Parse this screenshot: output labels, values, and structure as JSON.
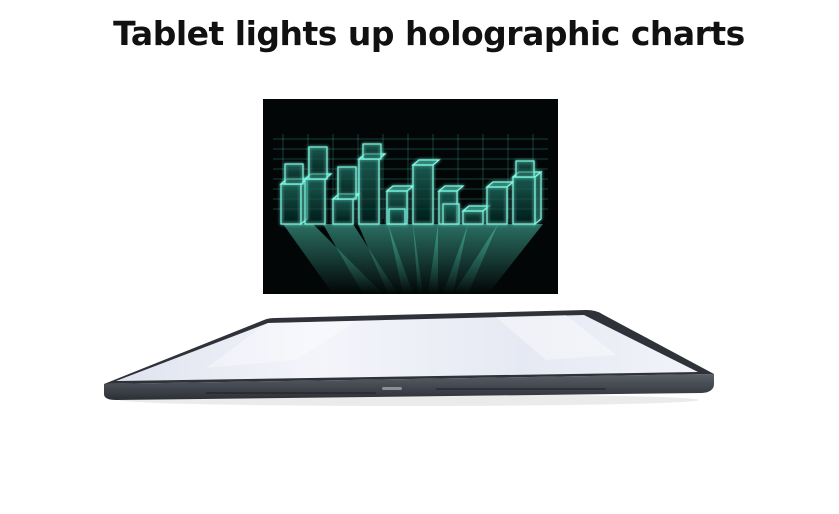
{
  "title": "Tablet lights up holographic charts",
  "hologram": {
    "image": "holographic-bar-chart-glow",
    "glow_color": "#5ff5d8"
  },
  "tablet": {
    "image": "tablet-lying-flat",
    "screen_color": "#eef0f8",
    "frame_color": "#3a3e46"
  }
}
